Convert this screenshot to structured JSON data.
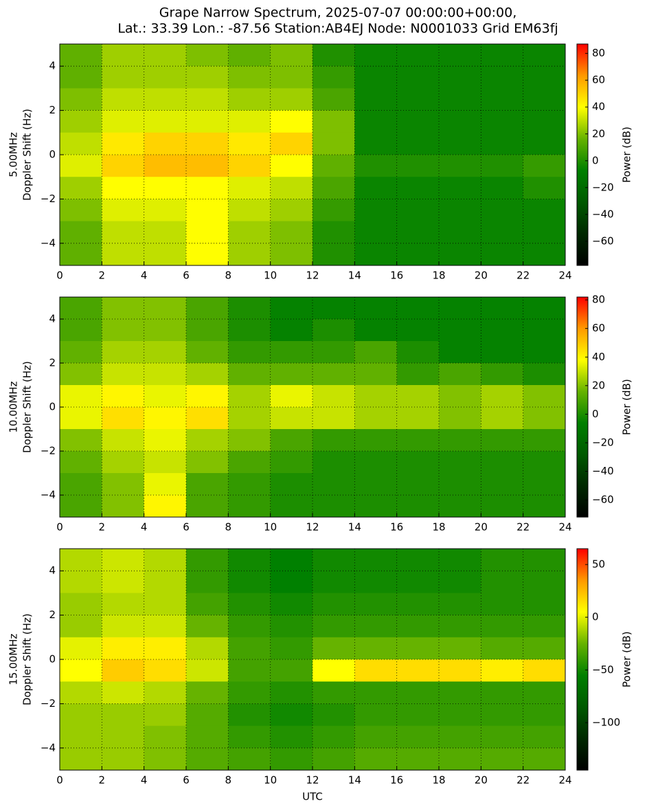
{
  "title": [
    "Grape Narrow Spectrum, 2025-07-07 00:00:00+00:00,",
    "Lat.: 33.39 Lon.: -87.56 Station:AB4EJ Node: N0001033 Grid EM63fj"
  ],
  "chart_data": [
    {
      "type": "heatmap",
      "ylabel": [
        "5.00MHz",
        "Doppler Shift (Hz)"
      ],
      "colorbar_label": "Power (dB)",
      "xlim": [
        0,
        24
      ],
      "xticks": [
        0,
        2,
        4,
        6,
        8,
        10,
        12,
        14,
        16,
        18,
        20,
        22,
        24
      ],
      "ylim": [
        -5,
        5
      ],
      "yticks": [
        {
          "value": -4,
          "label": "−4"
        },
        {
          "value": -2,
          "label": "−2"
        },
        0,
        2,
        4
      ],
      "clim": [
        -78,
        87
      ],
      "cticks": [
        {
          "value": -60,
          "label": "−60"
        },
        {
          "value": -40,
          "label": "−40"
        },
        {
          "value": -20,
          "label": "−20"
        },
        0,
        20,
        40,
        60,
        80
      ],
      "grid": true,
      "colormap": [
        "#000000",
        "#002800",
        "#005a00",
        "#008000",
        "#66b300",
        "#ffff00",
        "#ff9900",
        "#ff0000"
      ],
      "z": [
        [
          15,
          25,
          25,
          20,
          15,
          20,
          0,
          -5,
          -5,
          -5,
          -5,
          -5
        ],
        [
          15,
          25,
          25,
          25,
          20,
          20,
          5,
          -5,
          -5,
          -5,
          -5,
          -5
        ],
        [
          20,
          30,
          30,
          30,
          25,
          25,
          10,
          -5,
          -5,
          -5,
          -5,
          -5
        ],
        [
          25,
          35,
          35,
          35,
          35,
          40,
          20,
          -5,
          -5,
          -5,
          -5,
          -5
        ],
        [
          30,
          45,
          50,
          50,
          45,
          50,
          20,
          -5,
          -5,
          -5,
          -5,
          -5
        ],
        [
          35,
          50,
          55,
          55,
          50,
          40,
          15,
          0,
          0,
          0,
          0,
          5
        ],
        [
          25,
          40,
          40,
          40,
          35,
          30,
          10,
          -5,
          -5,
          -5,
          -5,
          0
        ],
        [
          20,
          35,
          35,
          40,
          30,
          25,
          5,
          -5,
          -5,
          -5,
          -5,
          -5
        ],
        [
          15,
          30,
          30,
          40,
          25,
          20,
          0,
          -5,
          -5,
          -5,
          -5,
          -5
        ],
        [
          15,
          30,
          30,
          40,
          25,
          20,
          0,
          -5,
          -5,
          -5,
          -5,
          -5
        ]
      ]
    },
    {
      "type": "heatmap",
      "ylabel": [
        "10.00MHz",
        "Doppler Shift (Hz)"
      ],
      "colorbar_label": "Power (dB)",
      "xlim": [
        0,
        24
      ],
      "xticks": [
        0,
        2,
        4,
        6,
        8,
        10,
        12,
        14,
        16,
        18,
        20,
        22,
        24
      ],
      "ylim": [
        -5,
        5
      ],
      "yticks": [
        {
          "value": -4,
          "label": "−4"
        },
        {
          "value": -2,
          "label": "−2"
        },
        0,
        2,
        4
      ],
      "clim": [
        -72,
        82
      ],
      "cticks": [
        {
          "value": -60,
          "label": "−60"
        },
        {
          "value": -40,
          "label": "−40"
        },
        {
          "value": -20,
          "label": "−20"
        },
        0,
        20,
        40,
        60,
        80
      ],
      "grid": true,
      "colormap": [
        "#000000",
        "#002800",
        "#005a00",
        "#008000",
        "#66b300",
        "#ffff00",
        "#ff9900",
        "#ff0000"
      ],
      "z": [
        [
          10,
          20,
          20,
          10,
          0,
          -5,
          -5,
          -5,
          -5,
          -5,
          -5,
          -5
        ],
        [
          10,
          20,
          20,
          10,
          0,
          -5,
          0,
          -5,
          -5,
          -5,
          -5,
          -5
        ],
        [
          15,
          25,
          25,
          15,
          5,
          5,
          5,
          10,
          0,
          -5,
          -5,
          -5
        ],
        [
          20,
          30,
          30,
          25,
          15,
          15,
          15,
          15,
          5,
          10,
          5,
          0
        ],
        [
          35,
          40,
          35,
          40,
          25,
          35,
          30,
          25,
          25,
          20,
          25,
          20
        ],
        [
          35,
          45,
          40,
          45,
          25,
          30,
          30,
          25,
          25,
          20,
          25,
          20
        ],
        [
          20,
          30,
          35,
          25,
          20,
          10,
          5,
          5,
          5,
          5,
          5,
          5
        ],
        [
          15,
          25,
          30,
          20,
          10,
          5,
          0,
          0,
          0,
          0,
          0,
          0
        ],
        [
          10,
          20,
          35,
          10,
          5,
          0,
          0,
          0,
          0,
          0,
          0,
          0
        ],
        [
          10,
          20,
          40,
          10,
          5,
          0,
          0,
          0,
          0,
          0,
          0,
          0
        ]
      ]
    },
    {
      "type": "heatmap",
      "ylabel": [
        "15.00MHz",
        "Doppler Shift (Hz)"
      ],
      "xlabel": "UTC",
      "colorbar_label": "Power (dB)",
      "xlim": [
        0,
        24
      ],
      "xticks": [
        0,
        2,
        4,
        6,
        8,
        10,
        12,
        14,
        16,
        18,
        20,
        22,
        24
      ],
      "ylim": [
        -5,
        5
      ],
      "yticks": [
        {
          "value": -4,
          "label": "−4"
        },
        {
          "value": -2,
          "label": "−2"
        },
        0,
        2,
        4
      ],
      "clim": [
        -145,
        65
      ],
      "cticks": [
        {
          "value": -100,
          "label": "−100"
        },
        {
          "value": -50,
          "label": "−50"
        },
        0,
        50
      ],
      "grid": true,
      "colormap": [
        "#000000",
        "#002800",
        "#005a00",
        "#008000",
        "#66b300",
        "#ffff00",
        "#ff9900",
        "#ff0000"
      ],
      "z": [
        [
          -10,
          -5,
          -10,
          -40,
          -50,
          -55,
          -50,
          -50,
          -50,
          -50,
          -45,
          -45
        ],
        [
          -10,
          -5,
          -10,
          -40,
          -50,
          -55,
          -50,
          -50,
          -50,
          -50,
          -45,
          -45
        ],
        [
          -15,
          -10,
          -10,
          -35,
          -45,
          -50,
          -45,
          -45,
          -45,
          -45,
          -45,
          -45
        ],
        [
          -15,
          -5,
          -5,
          -25,
          -40,
          -45,
          -40,
          -40,
          -40,
          -40,
          -40,
          -40
        ],
        [
          0,
          10,
          10,
          -10,
          -35,
          -40,
          -25,
          -25,
          -25,
          -25,
          -30,
          -30
        ],
        [
          5,
          20,
          15,
          -5,
          -35,
          -35,
          5,
          15,
          15,
          15,
          10,
          15
        ],
        [
          -10,
          -5,
          -10,
          -25,
          -40,
          -45,
          -40,
          -40,
          -40,
          -40,
          -40,
          -40
        ],
        [
          -15,
          -15,
          -15,
          -30,
          -45,
          -50,
          -45,
          -40,
          -40,
          -40,
          -40,
          -40
        ],
        [
          -15,
          -15,
          -20,
          -30,
          -40,
          -45,
          -40,
          -35,
          -35,
          -35,
          -35,
          -35
        ],
        [
          -15,
          -15,
          -20,
          -30,
          -35,
          -40,
          -35,
          -30,
          -30,
          -30,
          -30,
          -30
        ]
      ]
    }
  ]
}
